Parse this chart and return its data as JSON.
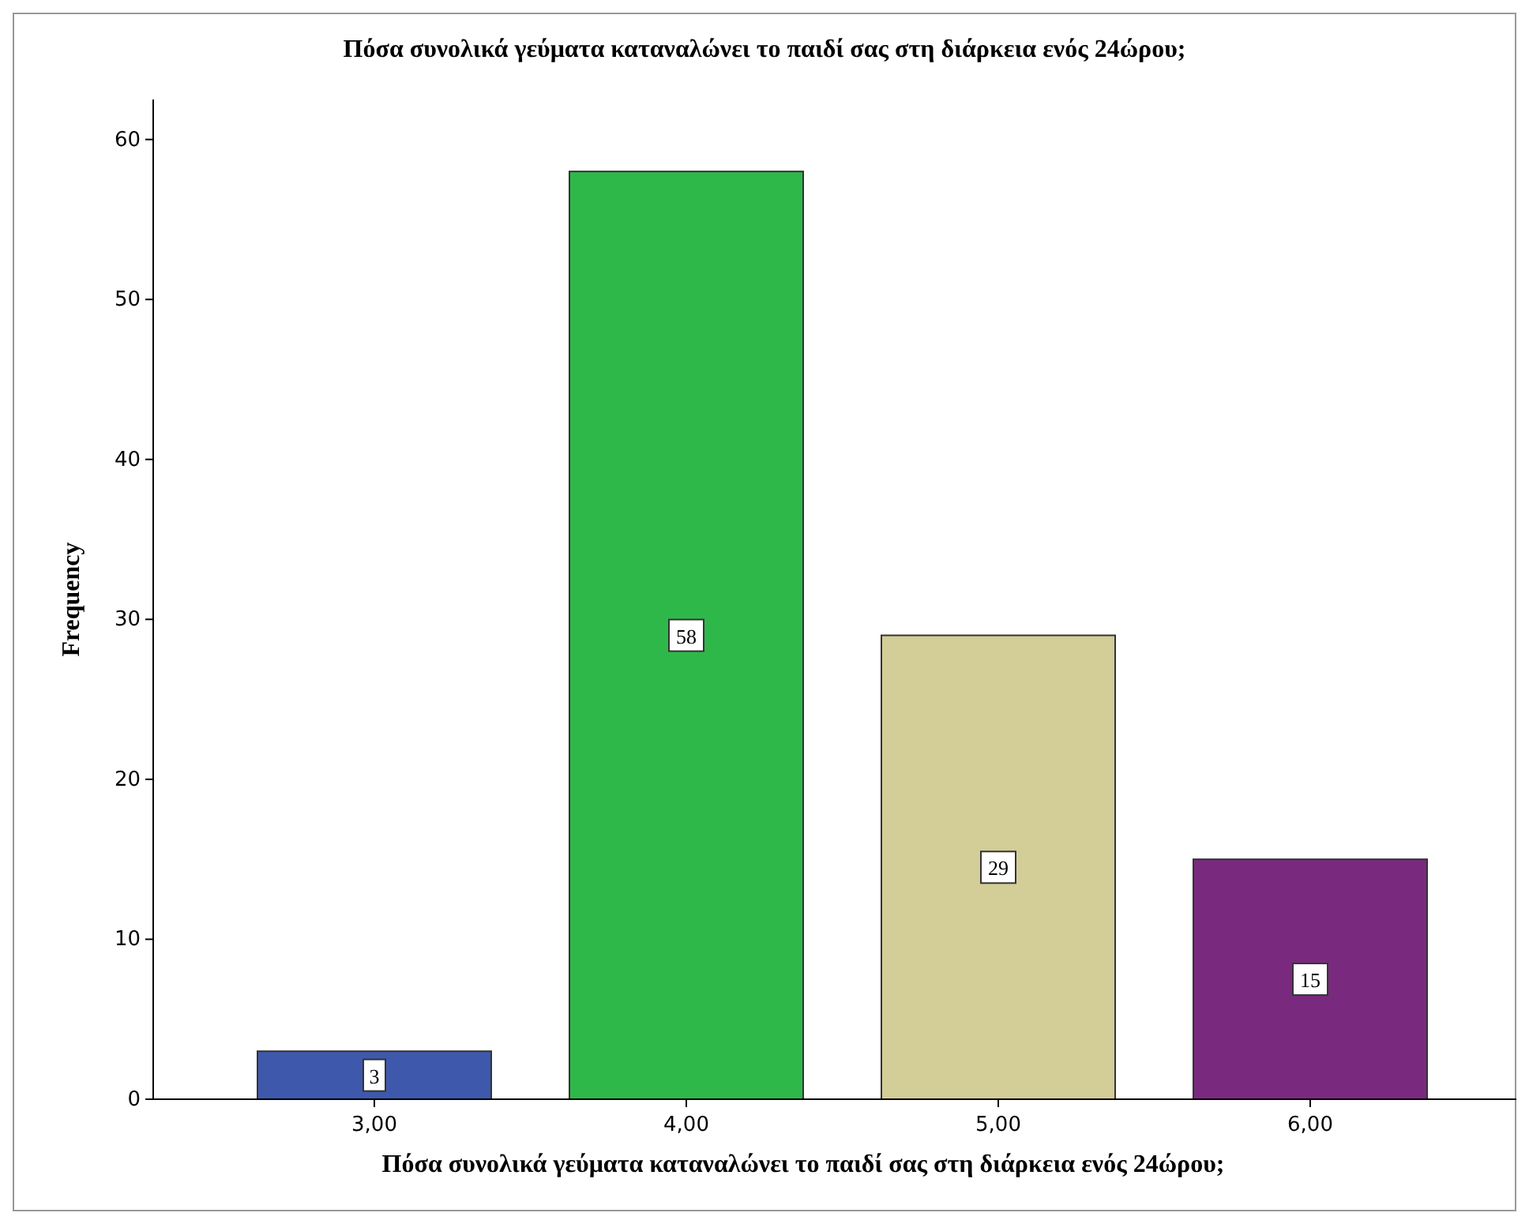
{
  "chart_data": {
    "type": "bar",
    "title": "Πόσα συνολικά γεύματα καταναλώνει το παιδί σας στη διάρκεια ενός 24ώρου;",
    "xlabel": "Πόσα συνολικά γεύματα καταναλώνει το παιδί σας στη διάρκεια ενός 24ώρου;",
    "ylabel": "Frequency",
    "categories": [
      "3,00",
      "4,00",
      "5,00",
      "6,00"
    ],
    "values": [
      3,
      58,
      29,
      15
    ],
    "colors": [
      "#3e58ac",
      "#2fb84a",
      "#d3cd97",
      "#7a2a7e"
    ],
    "ylim": [
      0,
      62.5
    ],
    "yticks": [
      0,
      10,
      20,
      30,
      40,
      50,
      60
    ],
    "grid": false,
    "data_labels": true
  }
}
